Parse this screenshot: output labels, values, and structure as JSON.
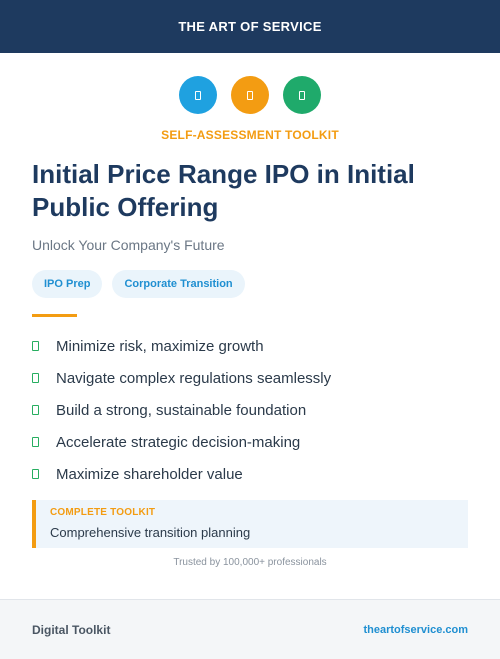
{
  "header": {
    "brand": "THE ART OF SERVICE"
  },
  "icons": [
    {
      "name": "document-icon",
      "color": "#1fa1e0"
    },
    {
      "name": "document-icon",
      "color": "#f39c12"
    },
    {
      "name": "document-icon",
      "color": "#1faa6b"
    }
  ],
  "kicker": "SELF-ASSESSMENT TOOLKIT",
  "title": "Initial Price Range IPO in Initial Public Offering",
  "subtitle": "Unlock Your Company's Future",
  "tags": [
    "IPO Prep",
    "Corporate Transition"
  ],
  "benefits": [
    "Minimize risk, maximize growth",
    "Navigate complex regulations seamlessly",
    "Build a strong, sustainable foundation",
    "Accelerate strategic decision-making",
    "Maximize shareholder value"
  ],
  "callout": {
    "label": "COMPLETE TOOLKIT",
    "text": "Comprehensive transition planning"
  },
  "trusted": "Trusted by 100,000+ professionals",
  "footer": {
    "left": "Digital Toolkit",
    "right": "theartofservice.com"
  }
}
